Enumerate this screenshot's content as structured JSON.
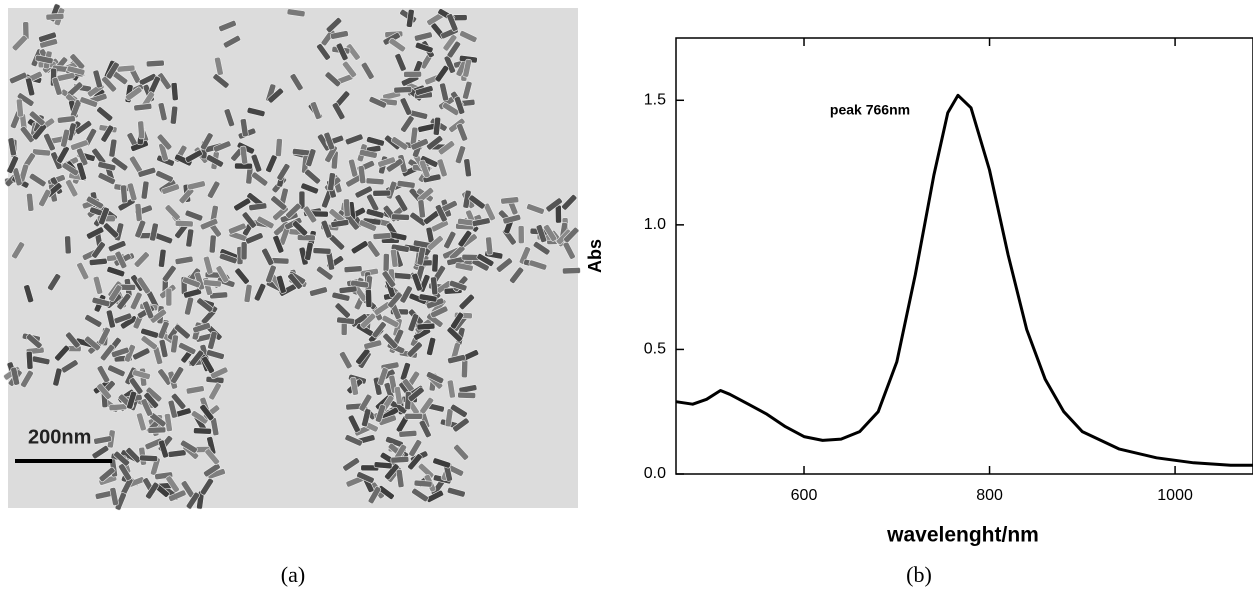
{
  "figure": {
    "panel_a": {
      "scale_bar": "200nm",
      "caption": "(a)"
    },
    "panel_b": {
      "caption": "(b)"
    }
  },
  "chart_data": {
    "type": "line",
    "xlabel": "wavelenght/nm",
    "ylabel": "Abs",
    "annotation": "peak 766nm",
    "x": [
      462,
      480,
      495,
      510,
      520,
      540,
      560,
      580,
      600,
      620,
      640,
      660,
      680,
      700,
      720,
      740,
      755,
      766,
      780,
      800,
      820,
      840,
      860,
      880,
      900,
      940,
      980,
      1020,
      1060,
      1084
    ],
    "series": [
      {
        "color": "#000000",
        "values": [
          0.29,
          0.28,
          0.3,
          0.335,
          0.32,
          0.28,
          0.24,
          0.19,
          0.15,
          0.135,
          0.14,
          0.17,
          0.25,
          0.45,
          0.8,
          1.2,
          1.45,
          1.52,
          1.47,
          1.22,
          0.88,
          0.58,
          0.38,
          0.25,
          0.17,
          0.1,
          0.065,
          0.045,
          0.035,
          0.035
        ]
      }
    ],
    "xlim": [
      462,
      1084
    ],
    "xticks": [
      600,
      800,
      1000
    ],
    "ylim": [
      0,
      1.75
    ],
    "yticks": [
      {
        "value": 0,
        "label": "0.0"
      },
      0.5,
      {
        "value": 1,
        "label": "1.0"
      },
      1.5
    ]
  }
}
